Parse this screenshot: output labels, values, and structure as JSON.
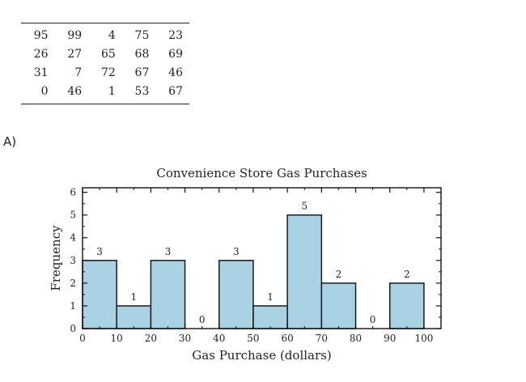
{
  "table": {
    "rows": [
      [
        "95",
        "99",
        "4",
        "75",
        "23"
      ],
      [
        "26",
        "27",
        "65",
        "68",
        "69"
      ],
      [
        "31",
        "7",
        "72",
        "67",
        "46"
      ],
      [
        "0",
        "46",
        "1",
        "53",
        "67"
      ]
    ]
  },
  "option_label": "A)",
  "chart_data": {
    "type": "bar",
    "title": "Convenience Store Gas Purchases",
    "xlabel": "Gas Purchase (dollars)",
    "ylabel": "Frequency",
    "bins": [
      [
        0,
        10
      ],
      [
        10,
        20
      ],
      [
        20,
        30
      ],
      [
        30,
        40
      ],
      [
        40,
        50
      ],
      [
        50,
        60
      ],
      [
        60,
        70
      ],
      [
        70,
        80
      ],
      [
        80,
        90
      ],
      [
        90,
        100
      ]
    ],
    "values": [
      3,
      1,
      3,
      0,
      3,
      1,
      5,
      2,
      0,
      2
    ],
    "xticks": [
      0,
      10,
      20,
      30,
      40,
      50,
      60,
      70,
      80,
      90,
      100
    ],
    "yticks": [
      0,
      1,
      2,
      3,
      4,
      5,
      6
    ],
    "xlim": [
      0,
      105
    ],
    "ylim": [
      0,
      6.2
    ],
    "bar_color": "#a9d2e5",
    "edge_color": "#1a1a1a",
    "grid": false
  }
}
